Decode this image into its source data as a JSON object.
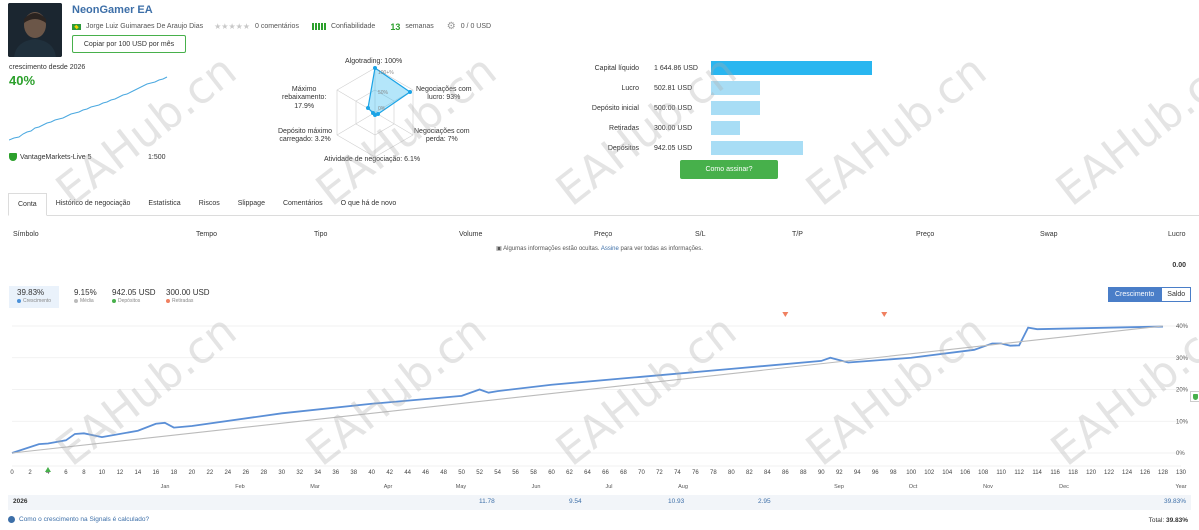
{
  "header": {
    "name": "NeonGamer EA",
    "author": "Jorge Luiz Guimaraes De Araujo Dias",
    "stars": "★★★★★",
    "comments": "0 comentários",
    "reliability_label": "Confiabilidade",
    "weeks_value": "13",
    "weeks_label": "semanas",
    "subscribers": "0 / 0 USD",
    "copy_button": "Copiar por 100 USD por mês"
  },
  "growth": {
    "since": "crescimento desde 2026",
    "value": "40%",
    "broker": "VantageMarkets-Live 5",
    "leverage": "1:500"
  },
  "radar": {
    "algotrading": "Algotrading: 100%",
    "ticks": [
      "100+%",
      "50%",
      "0%"
    ],
    "max_drawdown": [
      "Máximo",
      "rebaixamento:",
      "17.9%"
    ],
    "profit_trades": [
      "Negociações com",
      "lucro: 93%"
    ],
    "max_deposit_load": [
      "Depósito máximo",
      "carregado: 3.2%"
    ],
    "loss_trades": [
      "Negociações com",
      "perda: 7%"
    ],
    "activity": "Atividade de negociação: 6.1%",
    "values": {
      "algotrading": 1.0,
      "profit": 0.93,
      "loss": 0.07,
      "activity": 0.061,
      "load": 0.032,
      "drawdown": 0.179
    }
  },
  "capital": {
    "rows": [
      {
        "label": "Capital líquido",
        "value": "1 644.86 USD",
        "amount": 1644.86,
        "main": true
      },
      {
        "label": "Lucro",
        "value": "502.81 USD",
        "amount": 502.81,
        "main": false
      },
      {
        "label": "Depósito inicial",
        "value": "500.00 USD",
        "amount": 500.0,
        "main": false
      },
      {
        "label": "Retiradas",
        "value": "300.00 USD",
        "amount": 300.0,
        "main": false
      },
      {
        "label": "Depósitos",
        "value": "942.05 USD",
        "amount": 942.05,
        "main": false
      }
    ],
    "subscribe_button": "Como assinar?"
  },
  "tabs": [
    "Conta",
    "Histórico de negociação",
    "Estatística",
    "Riscos",
    "Slippage",
    "Comentários",
    "O que há de novo"
  ],
  "trade_table": {
    "headers": [
      "Símbolo",
      "Tempo",
      "Tipo",
      "Volume",
      "Preço",
      "S/L",
      "T/P",
      "Preço",
      "Swap",
      "Lucro"
    ],
    "hidden_text": "Algumas informações estão ocultas.",
    "hidden_link": "Assine",
    "hidden_text_after": "para ver todas as informações.",
    "total": "0.00"
  },
  "stats": [
    {
      "value": "39.83%",
      "label": "Crescimento",
      "color": "#4a90d9"
    },
    {
      "value": "9.15%",
      "label": "Média",
      "color": "#bbbbbb"
    },
    {
      "value": "942.05 USD",
      "label": "Depósitos",
      "color": "#47b04b"
    },
    {
      "value": "300.00 USD",
      "label": "Retiradas",
      "color": "#f08060"
    }
  ],
  "chart_toggle": {
    "growth": "Crescimento",
    "balance": "Saldo"
  },
  "chart_data": {
    "type": "line",
    "x_ticks": [
      0,
      2,
      4,
      6,
      8,
      10,
      12,
      14,
      16,
      18,
      20,
      22,
      24,
      26,
      28,
      30,
      32,
      34,
      36,
      38,
      40,
      42,
      44,
      46,
      48,
      50,
      52,
      54,
      56,
      58,
      60,
      62,
      64,
      66,
      68,
      70,
      72,
      74,
      76,
      78,
      80,
      82,
      84,
      86,
      88,
      90,
      92,
      94,
      96,
      98,
      100,
      102,
      104,
      106,
      108,
      110,
      112,
      114,
      116,
      118,
      120,
      122,
      124,
      126,
      128,
      130
    ],
    "months": [
      "Jan",
      "Feb",
      "Mar",
      "Apr",
      "May",
      "Jun",
      "Jul",
      "Aug",
      "Sep",
      "Oct",
      "Nov",
      "Dec",
      "Year"
    ],
    "y_ticks": [
      "40%",
      "30%",
      "20%",
      "10%",
      "0%"
    ],
    "ylim": [
      0,
      42
    ],
    "series": [
      {
        "name": "Crescimento",
        "color": "#5b8fd6",
        "x": [
          0,
          3,
          4,
          6,
          7,
          8,
          10,
          14,
          16,
          17,
          18,
          20,
          30,
          40,
          50,
          52,
          53,
          54,
          60,
          70,
          80,
          90,
          91,
          93,
          100,
          107,
          109,
          110,
          111,
          112,
          113,
          114,
          128
        ],
        "y": [
          0,
          2.8,
          3,
          4,
          6,
          6.2,
          5,
          7,
          9.2,
          9.5,
          8,
          8.5,
          12.5,
          15.5,
          18,
          20,
          19,
          19.5,
          21.5,
          24,
          26.5,
          29,
          30,
          28.5,
          30,
          32.5,
          34.5,
          34.5,
          33.8,
          33.9,
          39.5,
          39,
          39.83
        ]
      },
      {
        "name": "Média",
        "color": "#bbbbbb",
        "x": [
          0,
          128
        ],
        "y": [
          0,
          40
        ]
      }
    ],
    "markers": [
      {
        "x": 4,
        "type": "deposit"
      },
      {
        "x": 86,
        "type": "withdrawal"
      },
      {
        "x": 97,
        "type": "withdrawal"
      }
    ]
  },
  "year_row": {
    "year": "2026",
    "months": [
      {
        "month": "May",
        "value": "11.78"
      },
      {
        "month": "Jun",
        "value": "9.54"
      },
      {
        "month": "Jul",
        "value": "10.93"
      },
      {
        "month": "Aug",
        "value": "2.95"
      }
    ],
    "year_total": "39.83%"
  },
  "footer": {
    "help_text": "Como o crescimento na Signals é calculado?",
    "total_label": "Total:",
    "total_value": "39.83%"
  },
  "watermark": "EAHub.cn"
}
